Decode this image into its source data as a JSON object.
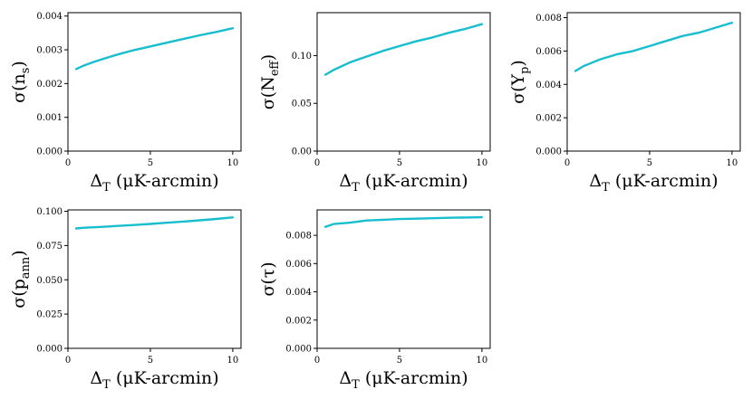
{
  "figure": {
    "line_color": "#17becf"
  },
  "chart_data": [
    {
      "type": "line",
      "xlabel": "Δ_T (μK-arcmin)",
      "ylabel": "σ(n_s)",
      "xlim": [
        0,
        10.5
      ],
      "ylim": [
        0,
        0.0041
      ],
      "xticks": [
        0,
        5,
        10
      ],
      "xtick_labels": [
        "0",
        "5",
        "10"
      ],
      "yticks": [
        0,
        0.001,
        0.002,
        0.003,
        0.004
      ],
      "ytick_labels": [
        "0.000",
        "0.001",
        "0.002",
        "0.003",
        "0.004"
      ],
      "grid": false,
      "x": [
        0.5,
        1,
        1.5,
        2,
        3,
        4,
        5,
        6,
        7,
        8,
        9,
        10
      ],
      "y": [
        0.00243,
        0.00254,
        0.00263,
        0.00271,
        0.00286,
        0.00299,
        0.0031,
        0.00321,
        0.00332,
        0.00343,
        0.00353,
        0.00364
      ]
    },
    {
      "type": "line",
      "xlabel": "Δ_T (μK-arcmin)",
      "ylabel": "σ(N_eff)",
      "xlim": [
        0,
        10.5
      ],
      "ylim": [
        0,
        0.145
      ],
      "xticks": [
        0,
        5,
        10
      ],
      "xtick_labels": [
        "0",
        "5",
        "10"
      ],
      "yticks": [
        0,
        0.05,
        0.1
      ],
      "ytick_labels": [
        "0.00",
        "0.05",
        "0.10"
      ],
      "grid": false,
      "x": [
        0.5,
        1,
        1.5,
        2,
        3,
        4,
        5,
        6,
        7,
        8,
        9,
        10
      ],
      "y": [
        0.08,
        0.085,
        0.089,
        0.093,
        0.099,
        0.105,
        0.11,
        0.115,
        0.119,
        0.124,
        0.128,
        0.133
      ]
    },
    {
      "type": "line",
      "xlabel": "Δ_T (μK-arcmin)",
      "ylabel": "σ(Y_p)",
      "xlim": [
        0,
        10.5
      ],
      "ylim": [
        0,
        0.0083
      ],
      "xticks": [
        0,
        5,
        10
      ],
      "xtick_labels": [
        "0",
        "5",
        "10"
      ],
      "yticks": [
        0,
        0.002,
        0.004,
        0.006,
        0.008
      ],
      "ytick_labels": [
        "0.000",
        "0.002",
        "0.004",
        "0.006",
        "0.008"
      ],
      "grid": false,
      "x": [
        0.5,
        1,
        1.5,
        2,
        3,
        4,
        5,
        6,
        7,
        8,
        9,
        10
      ],
      "y": [
        0.0048,
        0.0051,
        0.0053,
        0.0055,
        0.0058,
        0.006,
        0.0063,
        0.0066,
        0.0069,
        0.0071,
        0.0074,
        0.0077
      ]
    },
    {
      "type": "line",
      "xlabel": "Δ_T (μK-arcmin)",
      "ylabel": "σ(p_ann)",
      "xlim": [
        0,
        10.5
      ],
      "ylim": [
        0,
        0.101
      ],
      "xticks": [
        0,
        5,
        10
      ],
      "xtick_labels": [
        "0",
        "5",
        "10"
      ],
      "yticks": [
        0,
        0.025,
        0.05,
        0.075,
        0.1
      ],
      "ytick_labels": [
        "0.000",
        "0.025",
        "0.050",
        "0.075",
        "0.100"
      ],
      "grid": false,
      "x": [
        0.5,
        1,
        2,
        3,
        4,
        5,
        6,
        7,
        8,
        9,
        10
      ],
      "y": [
        0.0875,
        0.088,
        0.0886,
        0.0893,
        0.09,
        0.0908,
        0.0916,
        0.0925,
        0.0934,
        0.0944,
        0.0955
      ]
    },
    {
      "type": "line",
      "xlabel": "Δ_T (μK-arcmin)",
      "ylabel": "σ(τ)",
      "xlim": [
        0,
        10.5
      ],
      "ylim": [
        0,
        0.0098
      ],
      "xticks": [
        0,
        5,
        10
      ],
      "xtick_labels": [
        "0",
        "5",
        "10"
      ],
      "yticks": [
        0,
        0.002,
        0.004,
        0.006,
        0.008
      ],
      "ytick_labels": [
        "0.000",
        "0.002",
        "0.004",
        "0.006",
        "0.008"
      ],
      "grid": false,
      "x": [
        0.5,
        1,
        2,
        3,
        4,
        5,
        6,
        7,
        8,
        9,
        10
      ],
      "y": [
        0.0086,
        0.0088,
        0.0089,
        0.00905,
        0.0091,
        0.00915,
        0.00918,
        0.00921,
        0.00924,
        0.00926,
        0.00928
      ]
    }
  ]
}
